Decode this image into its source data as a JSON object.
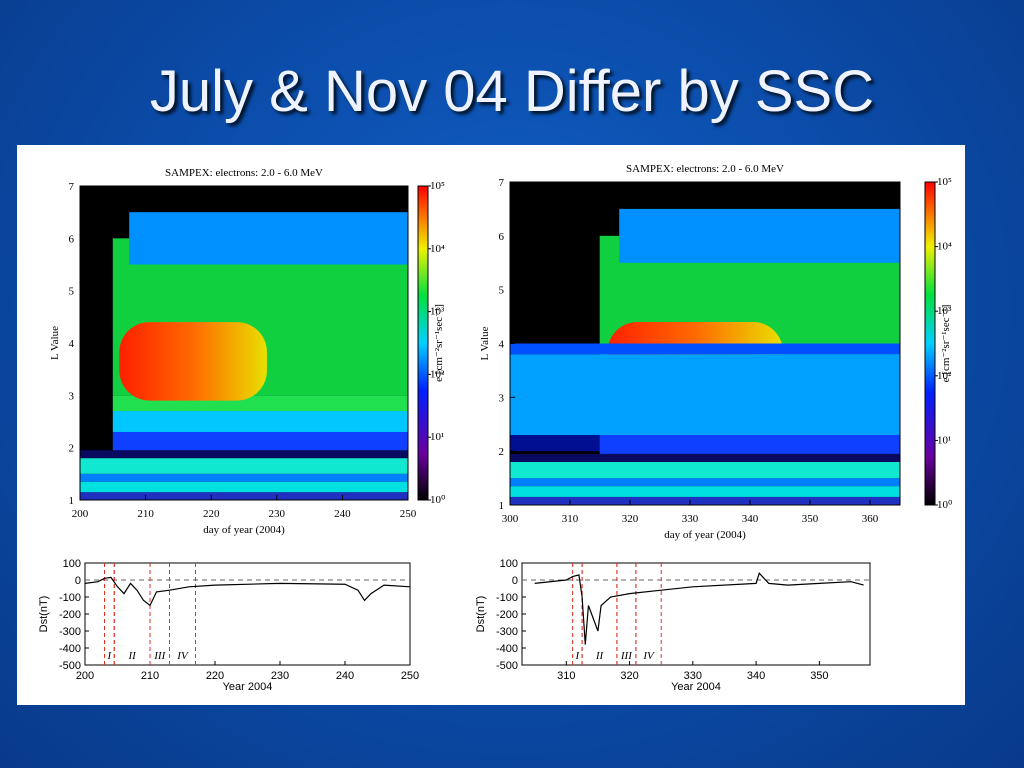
{
  "title": "July & Nov 04 Differ by SSC",
  "panels": [
    {
      "heatmap": {
        "title": "SAMPEX: electrons: 2.0 - 6.0 MeV",
        "ylabel": "L Value",
        "xlabel": "day of year (2004)",
        "xlim": [
          200,
          250
        ],
        "xticks": [
          200,
          210,
          220,
          230,
          240,
          250
        ],
        "ylim": [
          1,
          7
        ],
        "yticks": [
          1,
          2,
          3,
          4,
          5,
          6,
          7
        ],
        "colorbar": {
          "label": "e [cm⁻²sr⁻¹sec⁻¹]",
          "log": true,
          "lim": [
            1,
            100000
          ],
          "ticks": [
            {
              "value": 1,
              "label": "10⁰"
            },
            {
              "value": 10,
              "label": "10¹"
            },
            {
              "value": 100,
              "label": "10²"
            },
            {
              "value": 1000,
              "label": "10³"
            },
            {
              "value": 10000,
              "label": "10⁴"
            },
            {
              "value": 100000,
              "label": "10⁵"
            }
          ]
        }
      },
      "dst": {
        "ylabel": "Dst(nT)",
        "xlabel": "Year 2004",
        "xlim": [
          200,
          250
        ],
        "xticks": [
          200,
          210,
          220,
          230,
          240,
          250
        ],
        "ylim": [
          -500,
          100
        ],
        "yticks": [
          100,
          0,
          -100,
          -200,
          -300,
          -400,
          -500
        ],
        "phases": [
          {
            "x": [
              203,
              204.5
            ],
            "label": "I"
          },
          {
            "x": [
              204.5,
              210
            ],
            "label": "II"
          },
          {
            "x": [
              210,
              213
            ],
            "label": "III"
          },
          {
            "x": [
              213,
              217
            ],
            "label": "IV"
          }
        ],
        "x": [
          200,
          202,
          203,
          204,
          205,
          206,
          207,
          208,
          209,
          210,
          211,
          213,
          216,
          220,
          230,
          240,
          242,
          243,
          244,
          246,
          250
        ],
        "values": [
          -20,
          -10,
          10,
          15,
          -40,
          -80,
          -20,
          -60,
          -120,
          -150,
          -70,
          -60,
          -40,
          -30,
          -20,
          -25,
          -60,
          -120,
          -80,
          -30,
          -40
        ]
      }
    },
    {
      "heatmap": {
        "title": "SAMPEX: electrons: 2.0 - 6.0 MeV",
        "ylabel": "L Value",
        "xlabel": "day of year (2004)",
        "xlim": [
          300,
          365
        ],
        "xticks": [
          300,
          310,
          320,
          330,
          340,
          350,
          360
        ],
        "ylim": [
          1,
          7
        ],
        "yticks": [
          1,
          2,
          3,
          4,
          5,
          6,
          7
        ],
        "colorbar": {
          "label": "e [cm⁻²sr⁻¹sec⁻¹]",
          "log": true,
          "lim": [
            1,
            100000
          ],
          "ticks": [
            {
              "value": 1,
              "label": "10⁰"
            },
            {
              "value": 10,
              "label": "10¹"
            },
            {
              "value": 100,
              "label": "10²"
            },
            {
              "value": 1000,
              "label": "10³"
            },
            {
              "value": 10000,
              "label": "10⁴"
            },
            {
              "value": 100000,
              "label": "10⁵"
            }
          ]
        }
      },
      "dst": {
        "ylabel": "Dst(nT)",
        "xlabel": "Year 2004",
        "xlim": [
          303,
          358
        ],
        "xticks": [
          310,
          320,
          330,
          340,
          350
        ],
        "ylim": [
          -500,
          100
        ],
        "yticks": [
          100,
          0,
          -100,
          -200,
          -300,
          -400,
          -500
        ],
        "phases": [
          {
            "x": [
              311,
              312.5
            ],
            "label": "I"
          },
          {
            "x": [
              312.5,
              318
            ],
            "label": "II"
          },
          {
            "x": [
              318,
              321
            ],
            "label": "III"
          },
          {
            "x": [
              321,
              325
            ],
            "label": "IV"
          }
        ],
        "x": [
          305,
          310,
          311,
          312,
          312.5,
          313,
          313.5,
          314,
          315,
          315.5,
          317,
          320,
          325,
          330,
          340,
          340.5,
          342,
          345,
          350,
          355,
          357
        ],
        "values": [
          -20,
          0,
          20,
          30,
          -100,
          -380,
          -150,
          -200,
          -300,
          -150,
          -100,
          -80,
          -60,
          -40,
          -20,
          40,
          -20,
          -30,
          -20,
          -10,
          -30
        ]
      }
    }
  ]
}
